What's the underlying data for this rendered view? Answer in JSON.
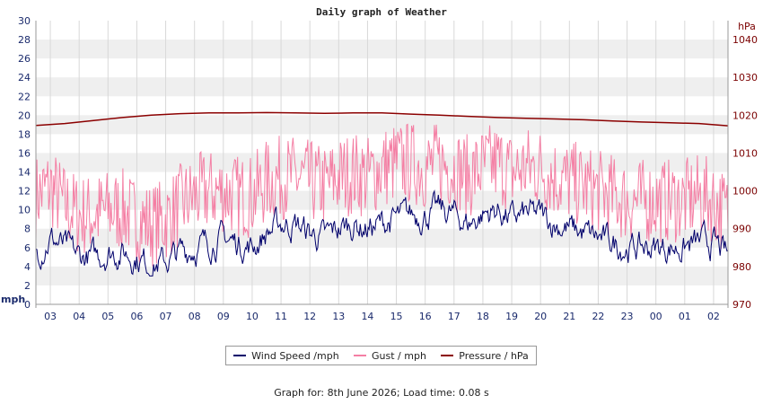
{
  "colors": {
    "wind": "#00006b",
    "gust": "#f47fa4",
    "pressure": "#8b0000",
    "band": "#efefef",
    "grid": "#d8d8d8",
    "left_axis": "#1a2a6c",
    "right_axis": "#7a0000"
  },
  "chart_data": {
    "type": "line",
    "title": "Daily graph of Weather",
    "y_left": {
      "unit": "mph",
      "range": [
        0,
        30
      ],
      "ticks": [
        "0",
        "2",
        "4",
        "6",
        "8",
        "10",
        "12",
        "14",
        "16",
        "18",
        "20",
        "22",
        "24",
        "26",
        "28",
        "30"
      ]
    },
    "y_right": {
      "unit": "hPa",
      "range": [
        970,
        1045
      ],
      "ticks": [
        "970",
        "980",
        "990",
        "1000",
        "1010",
        "1020",
        "1030",
        "1040"
      ]
    },
    "x_axis": {
      "range_hours": [
        0,
        24
      ],
      "ticks": [
        "03",
        "04",
        "05",
        "06",
        "07",
        "08",
        "09",
        "10",
        "11",
        "12",
        "13",
        "14",
        "15",
        "16",
        "17",
        "18",
        "19",
        "20",
        "21",
        "22",
        "23",
        "00",
        "01",
        "02"
      ]
    },
    "grid": true,
    "legend_position": "bottom-center",
    "series": [
      {
        "name": "Wind Speed /mph",
        "axis": "left",
        "x": [
          0,
          0.5,
          1,
          1.5,
          2,
          2.5,
          3,
          3.5,
          4,
          4.5,
          5,
          5.5,
          6,
          6.5,
          7,
          7.5,
          8,
          8.5,
          9,
          9.5,
          10,
          10.5,
          11,
          11.5,
          12,
          12.5,
          13,
          13.5,
          14,
          14.5,
          15,
          15.5,
          16,
          16.5,
          17,
          17.5,
          18,
          18.5,
          19,
          19.5,
          20,
          20.5,
          21,
          21.5,
          22,
          22.5,
          23,
          23.5,
          24
        ],
        "values": [
          5.5,
          7.0,
          6.0,
          5.0,
          5.0,
          5.5,
          5.5,
          5.0,
          4.2,
          4.5,
          5.5,
          6.0,
          6.5,
          7.0,
          6.5,
          6.0,
          7.5,
          8.5,
          8.5,
          7.5,
          7.0,
          8.0,
          8.5,
          8.0,
          8.5,
          9.0,
          9.5,
          9.5,
          10.0,
          9.5,
          8.5,
          9.5,
          10.0,
          9.0,
          9.5,
          9.5,
          8.5,
          8.0,
          7.5,
          7.0,
          6.5,
          6.0,
          6.0,
          6.0,
          6.0,
          6.0,
          6.5,
          6.5,
          5.0
        ]
      },
      {
        "name": "Gust / mph",
        "axis": "left",
        "x": [
          0,
          0.5,
          1,
          1.5,
          2,
          2.5,
          3,
          3.5,
          4,
          4.5,
          5,
          5.5,
          6,
          6.5,
          7,
          7.5,
          8,
          8.5,
          9,
          9.5,
          10,
          10.5,
          11,
          11.5,
          12,
          12.5,
          13,
          13.5,
          14,
          14.5,
          15,
          15.5,
          16,
          16.5,
          17,
          17.5,
          18,
          18.5,
          19,
          19.5,
          20,
          20.5,
          21,
          21.5,
          22,
          22.5,
          23,
          23.5,
          24
        ],
        "values": [
          11.0,
          12.0,
          10.0,
          9.0,
          9.0,
          9.5,
          9.5,
          8.5,
          8.0,
          8.5,
          10.0,
          11.0,
          11.5,
          11.5,
          11.0,
          11.0,
          12.5,
          13.0,
          13.0,
          12.5,
          12.0,
          13.0,
          13.5,
          13.0,
          14.0,
          14.5,
          14.5,
          14.0,
          14.5,
          14.0,
          13.0,
          14.0,
          14.5,
          13.5,
          14.0,
          14.0,
          13.0,
          12.5,
          12.0,
          11.5,
          11.0,
          10.5,
          10.5,
          10.5,
          10.5,
          10.5,
          11.0,
          10.5,
          9.0
        ]
      },
      {
        "name": "Pressure / hPa",
        "axis": "right",
        "x": [
          0,
          1,
          2,
          3,
          4,
          5,
          6,
          7,
          8,
          9,
          10,
          11,
          12,
          13,
          14,
          15,
          16,
          17,
          18,
          19,
          20,
          21,
          22,
          23,
          24
        ],
        "values": [
          1017.3,
          1017.8,
          1018.6,
          1019.4,
          1020.0,
          1020.4,
          1020.6,
          1020.6,
          1020.7,
          1020.6,
          1020.5,
          1020.6,
          1020.6,
          1020.3,
          1020.0,
          1019.7,
          1019.4,
          1019.2,
          1019.0,
          1018.8,
          1018.5,
          1018.2,
          1018.0,
          1017.8,
          1017.2
        ]
      }
    ]
  },
  "legend": {
    "wind_label": "Wind Speed /mph",
    "gust_label": "Gust / mph",
    "pressure_label": "Pressure / hPa"
  },
  "footer": {
    "text": "Graph for: 8th June 2026; Load time: 0.08 s"
  }
}
